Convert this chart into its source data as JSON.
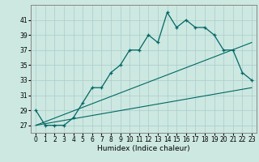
{
  "xlabel": "Humidex (Indice chaleur)",
  "bg_color": "#cce8e0",
  "line_color": "#006666",
  "grid_color": "#aacccc",
  "xlim": [
    -0.5,
    23.5
  ],
  "ylim": [
    26.0,
    43.0
  ],
  "yticks": [
    27,
    29,
    31,
    33,
    35,
    37,
    39,
    41
  ],
  "xticks": [
    0,
    1,
    2,
    3,
    4,
    5,
    6,
    7,
    8,
    9,
    10,
    11,
    12,
    13,
    14,
    15,
    16,
    17,
    18,
    19,
    20,
    21,
    22,
    23
  ],
  "curve_main_x": [
    0,
    1,
    2,
    3,
    4,
    5,
    6,
    7,
    8,
    9,
    10,
    11,
    12,
    13,
    14,
    15,
    16,
    17,
    18,
    19,
    20,
    21,
    22,
    23
  ],
  "curve_main_y": [
    29,
    27,
    27,
    27,
    28,
    30,
    32,
    32,
    34,
    35,
    37,
    37,
    39,
    38,
    42,
    40,
    41,
    40,
    40,
    39,
    37,
    37,
    34,
    33
  ],
  "curve_line1_x": [
    0,
    23
  ],
  "curve_line1_y": [
    27,
    38
  ],
  "curve_line2_x": [
    0,
    23
  ],
  "curve_line2_y": [
    27,
    32
  ],
  "fontsize_xlabel": 6.5,
  "fontsize_ticks": 5.5
}
